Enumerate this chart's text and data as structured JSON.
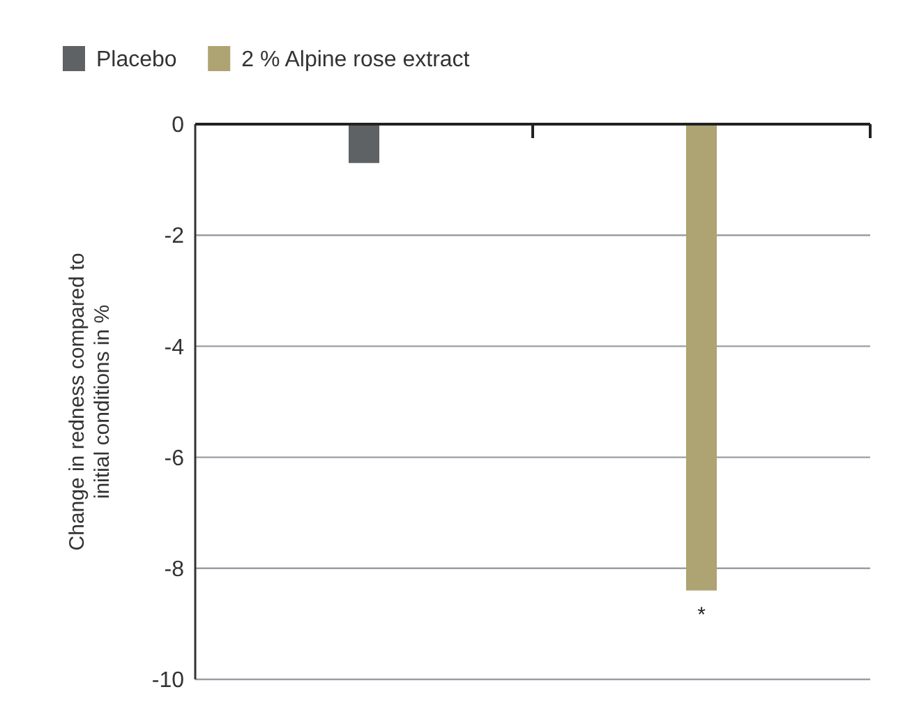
{
  "chart_data": {
    "type": "bar",
    "ylabel": "Change in redness compared to initial conditions in %",
    "categories": [
      null,
      null
    ],
    "series": [
      {
        "name": "Placebo",
        "color": "#5f6264",
        "values": [
          -0.7,
          null
        ]
      },
      {
        "name": "2 % Alpine rose extract",
        "color": "#aea372",
        "values": [
          null,
          -8.4
        ]
      }
    ],
    "ylim": [
      -10,
      0
    ],
    "yticks": [
      -10,
      -8,
      -6,
      -4,
      -2,
      0
    ],
    "grid": "y",
    "legend": "top left",
    "annotations": [
      "*"
    ]
  }
}
